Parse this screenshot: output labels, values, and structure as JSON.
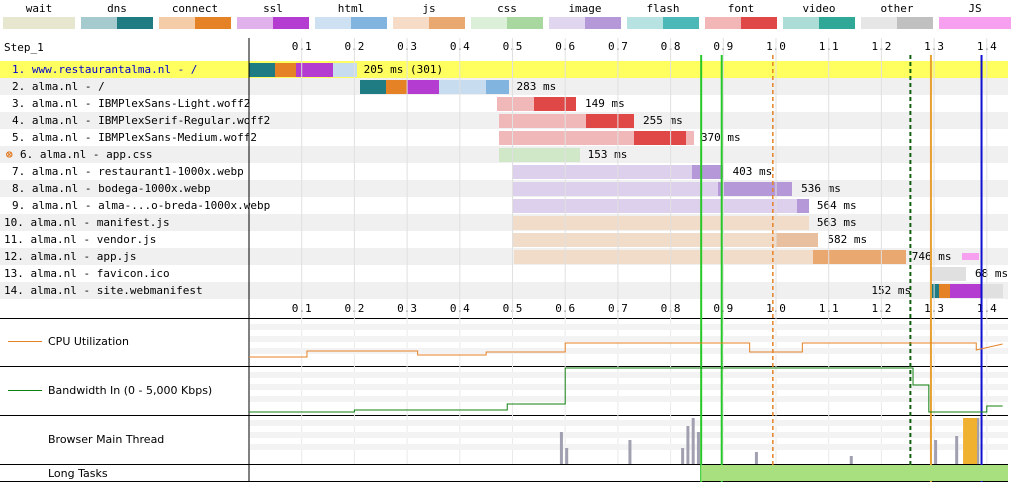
{
  "legend": [
    {
      "label": "wait",
      "color": "#e7e7cf"
    },
    {
      "label": "dns",
      "color": "#1f7c83"
    },
    {
      "label": "connect",
      "color": "#e58226"
    },
    {
      "label": "ssl",
      "color": "#b43cd0"
    },
    {
      "label": "html",
      "color": "#82b4e0"
    },
    {
      "label": "js",
      "color": "#e8a870"
    },
    {
      "label": "css",
      "color": "#a8d8a0"
    },
    {
      "label": "image",
      "color": "#b498d8"
    },
    {
      "label": "flash",
      "color": "#4cb8b8"
    },
    {
      "label": "font",
      "color": "#e04848"
    },
    {
      "label": "video",
      "color": "#30a898"
    },
    {
      "label": "other",
      "color": "#c0c0c0"
    },
    {
      "label": "JS Execution",
      "color": "#f8a0f0"
    }
  ],
  "step_label": "Step_1",
  "axis_ticks": [
    "0.1",
    "0.2",
    "0.3",
    "0.4",
    "0.5",
    "0.6",
    "0.7",
    "0.8",
    "0.9",
    "1.0",
    "1.1",
    "1.2",
    "1.3",
    "1.4"
  ],
  "requests": [
    {
      "label": "1. www.restaurantalma.nl - /",
      "time": "205 ms (301)",
      "highlight": true,
      "link": true
    },
    {
      "label": "2. alma.nl - /",
      "time": "283 ms"
    },
    {
      "label": "3. alma.nl - IBMPlexSans-Light.woff2",
      "time": "149 ms"
    },
    {
      "label": "4. alma.nl - IBMPlexSerif-Regular.woff2",
      "time": "255 ms"
    },
    {
      "label": "5. alma.nl - IBMPlexSans-Medium.woff2",
      "time": "370 ms"
    },
    {
      "label": "6. alma.nl - app.css",
      "time": "153 ms",
      "warning": true
    },
    {
      "label": "7. alma.nl - restaurant1-1000x.webp",
      "time": "403 ms"
    },
    {
      "label": "8. alma.nl - bodega-1000x.webp",
      "time": "536 ms"
    },
    {
      "label": "9. alma.nl - alma-...o-breda-1000x.webp",
      "time": "564 ms"
    },
    {
      "label": "10. alma.nl - manifest.js",
      "time": "563 ms"
    },
    {
      "label": "11. alma.nl - vendor.js",
      "time": "582 ms"
    },
    {
      "label": "12. alma.nl - app.js",
      "time": "746 ms"
    },
    {
      "label": "13. alma.nl - favicon.ico",
      "time": "68 ms"
    },
    {
      "label": "14. alma.nl - site.webmanifest",
      "time": "152 ms"
    }
  ],
  "panels": {
    "cpu": "CPU Utilization",
    "bandwidth": "Bandwidth In (0 - 5,000 Kbps)",
    "main_thread": "Browser Main Thread",
    "long_tasks": "Long Tasks"
  },
  "colors": {
    "highlight_row": "#ffff60",
    "alt_row": "#f0f0f0",
    "start_render": "#28c828",
    "dom_content": "#e58226",
    "on_load": "#106010",
    "doc_complete": "#e8a030",
    "fully_loaded": "#1010d0",
    "long_task": "#a8e080"
  }
}
